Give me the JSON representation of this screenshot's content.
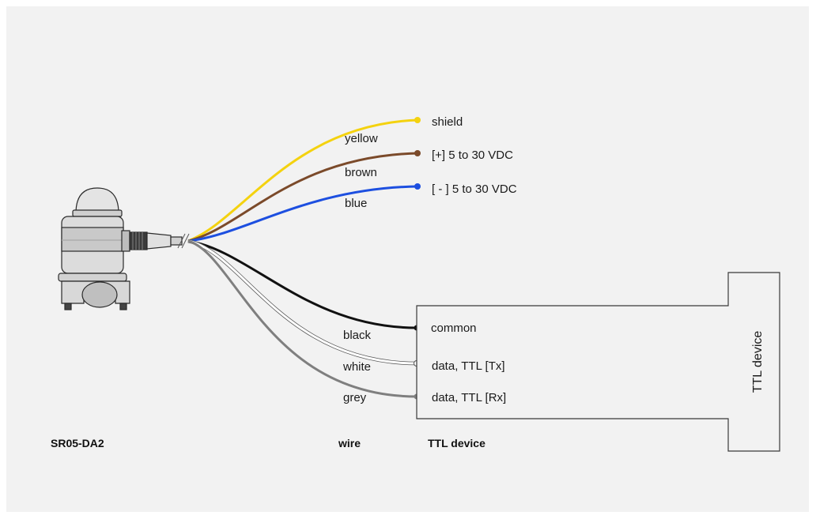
{
  "sensor": {
    "name": "SR05-DA2"
  },
  "captions": {
    "sensor": "SR05-DA2",
    "wire": "wire",
    "device": "TTL device"
  },
  "device": {
    "title": "TTL device"
  },
  "power_wires": [
    {
      "color_name": "yellow",
      "hex": "#f4d20f",
      "terminal": "shield"
    },
    {
      "color_name": "brown",
      "hex": "#7b4a2a",
      "terminal": "[+]  5 to 30 VDC"
    },
    {
      "color_name": "blue",
      "hex": "#1d4fe0",
      "terminal": "[ - ] 5 to 30 VDC"
    }
  ],
  "signal_wires": [
    {
      "color_name": "black",
      "hex": "#111111",
      "terminal": "common"
    },
    {
      "color_name": "white",
      "hex": "#ffffff",
      "terminal": "data, TTL  [Tx]"
    },
    {
      "color_name": "grey",
      "hex": "#7f7f7f",
      "terminal": "data, TTL  [Rx]"
    }
  ]
}
